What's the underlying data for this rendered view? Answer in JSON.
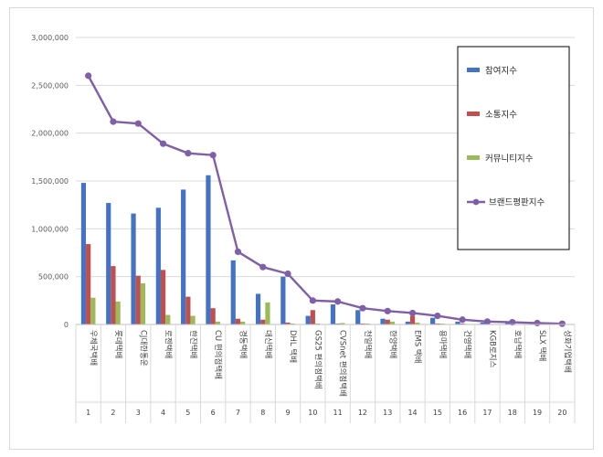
{
  "chart_data": {
    "type": "bar",
    "ylim": [
      0,
      3000000
    ],
    "yticks": [
      "0",
      "500,000",
      "1,000,000",
      "1,500,000",
      "2,000,000",
      "2,500,000",
      "3,000,000"
    ],
    "ytick_values": [
      0,
      500000,
      1000000,
      1500000,
      2000000,
      2500000,
      3000000
    ],
    "categories": [
      "우체국택배",
      "롯데택배",
      "CJ대한통운",
      "로젠택배",
      "한진택배",
      "CU 편의점택배",
      "경동택배",
      "대신택배",
      "DHL 택배",
      "GS25 편의점택배",
      "CVSnet 편의점택배",
      "천일택배",
      "한양택배",
      "EMS 택배",
      "용마택배",
      "건영택배",
      "KGB로지스",
      "호남택배",
      "SLX 택배",
      "성화기업택배"
    ],
    "ranks": [
      "1",
      "2",
      "3",
      "4",
      "5",
      "6",
      "7",
      "8",
      "9",
      "10",
      "11",
      "12",
      "13",
      "14",
      "15",
      "16",
      "17",
      "18",
      "19",
      "20"
    ],
    "series": [
      {
        "name": "참여지수",
        "type": "bar",
        "color": "#4472c4",
        "values": [
          1480000,
          1270000,
          1160000,
          1220000,
          1410000,
          1560000,
          670000,
          320000,
          500000,
          90000,
          210000,
          150000,
          60000,
          30000,
          70000,
          30000,
          20000,
          15000,
          10000,
          5000
        ]
      },
      {
        "name": "소통지수",
        "type": "bar",
        "color": "#c0504d",
        "values": [
          840000,
          610000,
          510000,
          570000,
          290000,
          170000,
          60000,
          50000,
          20000,
          150000,
          10000,
          10000,
          50000,
          90000,
          10000,
          10000,
          5000,
          5000,
          3000,
          2000
        ]
      },
      {
        "name": "커뮤니티지수",
        "type": "bar",
        "color": "#9bbb59",
        "values": [
          280000,
          240000,
          430000,
          100000,
          90000,
          30000,
          30000,
          230000,
          10000,
          10000,
          15000,
          10000,
          30000,
          20000,
          10000,
          5000,
          5000,
          3000,
          2000,
          1000
        ]
      },
      {
        "name": "브랜드평판지수",
        "type": "line",
        "color": "#7f5fa8",
        "values": [
          2600000,
          2120000,
          2100000,
          1890000,
          1790000,
          1770000,
          760000,
          600000,
          530000,
          250000,
          240000,
          170000,
          140000,
          120000,
          90000,
          50000,
          30000,
          23000,
          15000,
          8000
        ]
      }
    ],
    "legend_position": "top-right",
    "grid": true
  }
}
